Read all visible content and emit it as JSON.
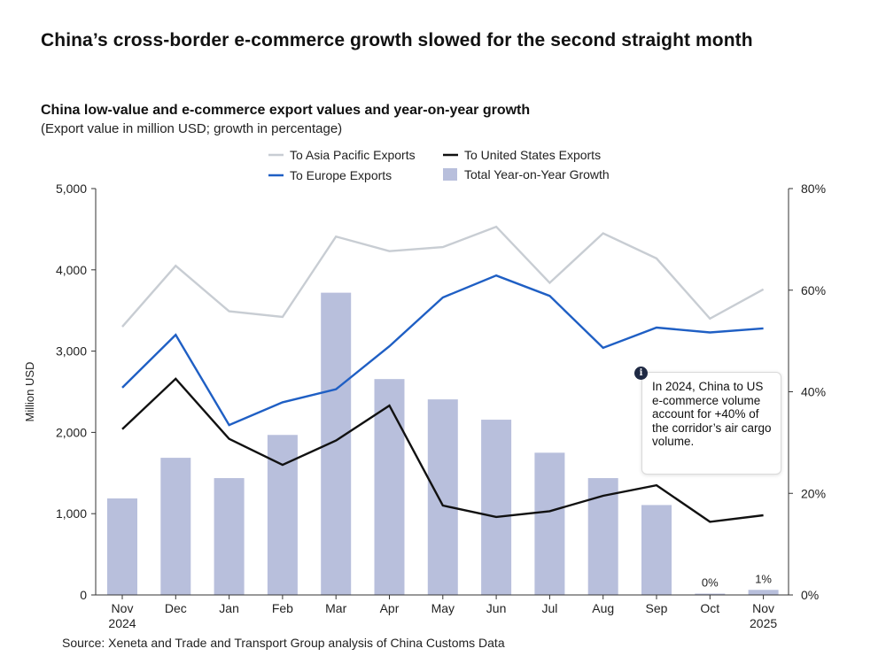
{
  "headline": "China’s cross-border e-commerce growth slowed for the second straight month",
  "source": "Source: Xeneta and Trade and Transport Group analysis of China Customs Data",
  "annotation": {
    "icon": "info-icon",
    "text": "In 2024, China to US e-commerce volume account for +40% of the corridor’s air cargo volume."
  },
  "chart_data": {
    "type": "bar+line",
    "title": "China low-value and e-commerce export values and year-on-year growth",
    "subtitle": "(Export value in million USD; growth in percentage)",
    "ylabel": "Million USD",
    "ylim": [
      0,
      5000
    ],
    "y2lim": [
      0,
      80
    ],
    "yticks": [
      "0",
      "1,000",
      "2,000",
      "3,000",
      "4,000",
      "5,000"
    ],
    "y2ticks": [
      "0%",
      "20%",
      "40%",
      "60%",
      "80%"
    ],
    "categories": [
      "Nov",
      "Dec",
      "Jan",
      "Feb",
      "Mar",
      "Apr",
      "May",
      "Jun",
      "Jul",
      "Aug",
      "Sep",
      "Oct",
      "Nov"
    ],
    "year_labels": [
      "2024",
      "",
      "",
      "",
      "",
      "",
      "",
      "",
      "",
      "",
      "",
      "",
      "2025"
    ],
    "legend_placement": "top-center",
    "bars": {
      "name": "Total Year-on-Year Growth",
      "color": "#b8bfdc",
      "axis": "right",
      "values": [
        19,
        27,
        23,
        31.5,
        59.5,
        42.5,
        38.5,
        34.5,
        28,
        23,
        17.7,
        0,
        1
      ],
      "data_labels": [
        "",
        "",
        "",
        "",
        "",
        "",
        "",
        "",
        "",
        "",
        "",
        "0%",
        "1%"
      ]
    },
    "series": [
      {
        "name": "To Asia Pacific Exports",
        "color": "#c8cdd3",
        "axis": "left",
        "values": [
          3300,
          4050,
          3490,
          3420,
          4410,
          4230,
          4280,
          4530,
          3840,
          4450,
          4140,
          3400,
          3760
        ]
      },
      {
        "name": "To United States Exports",
        "color": "#111111",
        "axis": "left",
        "values": [
          2040,
          2660,
          1920,
          1600,
          1900,
          2330,
          1100,
          960,
          1030,
          1220,
          1350,
          900,
          980
        ]
      },
      {
        "name": "To Europe Exports",
        "color": "#1f5fc4",
        "axis": "left",
        "values": [
          2550,
          3200,
          2090,
          2370,
          2530,
          3060,
          3660,
          3930,
          3680,
          3040,
          3290,
          3230,
          3280
        ]
      }
    ]
  }
}
